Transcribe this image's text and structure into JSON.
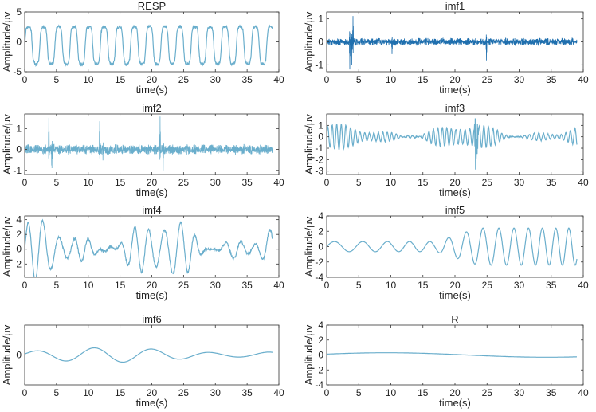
{
  "chart_data": [
    {
      "type": "line",
      "title": "RESP",
      "xlabel": "time(s)",
      "ylabel": "Amplitude/μv",
      "xlim": [
        0,
        40
      ],
      "ylim": [
        -5,
        5
      ],
      "xticks": [
        "0",
        "5",
        "10",
        "15",
        "20",
        "25",
        "30",
        "35",
        "40"
      ],
      "yticks": [
        "-5",
        "0",
        "5"
      ],
      "grid": false,
      "signal": {
        "kind": "resp",
        "amp": 3.2,
        "freq": 0.42,
        "seed": 11
      }
    },
    {
      "type": "line",
      "title": "imf1",
      "xlabel": "time(s)",
      "ylabel": "Amplitude/μv",
      "xlim": [
        0,
        40
      ],
      "ylim": [
        -1.3,
        1.3
      ],
      "xticks": [
        "0",
        "5",
        "10",
        "15",
        "20",
        "25",
        "30",
        "35",
        "40"
      ],
      "yticks": [
        "-1",
        "0",
        "1"
      ],
      "grid": false,
      "signal": {
        "kind": "noise",
        "amp": 0.12,
        "freq": 7,
        "seed": 21,
        "bursts": [
          [
            3.6,
            -1.2
          ],
          [
            4.1,
            1.1
          ],
          [
            3.9,
            -0.9
          ],
          [
            10.2,
            -0.45
          ],
          [
            24.9,
            -0.75
          ]
        ]
      }
    },
    {
      "type": "line",
      "title": "imf2",
      "xlabel": "time(s)",
      "ylabel": "Amplitude/μv",
      "xlim": [
        0,
        40
      ],
      "ylim": [
        -1.2,
        1.7
      ],
      "xticks": [
        "0",
        "5",
        "10",
        "15",
        "20",
        "25",
        "30",
        "35",
        "40"
      ],
      "yticks": [
        "-1",
        "0",
        "1"
      ],
      "grid": false,
      "signal": {
        "kind": "noise",
        "amp": 0.18,
        "freq": 3,
        "seed": 31,
        "bursts": [
          [
            3.8,
            1.6
          ],
          [
            4.3,
            -1.1
          ],
          [
            11.8,
            1.3
          ],
          [
            12.3,
            -0.6
          ],
          [
            21.3,
            1.5
          ],
          [
            21.8,
            -0.9
          ]
        ]
      }
    },
    {
      "type": "line",
      "title": "imf3",
      "xlabel": "time(s)",
      "ylabel": "Amplitude/μv",
      "xlim": [
        0,
        40
      ],
      "ylim": [
        -3.3,
        2
      ],
      "xticks": [
        "0",
        "5",
        "10",
        "15",
        "20",
        "25",
        "30",
        "35",
        "40"
      ],
      "yticks": [
        "-3",
        "-2",
        "-1",
        "0",
        "1"
      ],
      "grid": false,
      "signal": {
        "kind": "osc",
        "amp": 0.8,
        "freq": 1.4,
        "seed": 41,
        "bursts": [
          [
            23.2,
            -3.1
          ],
          [
            23.5,
            1.8
          ]
        ]
      }
    },
    {
      "type": "line",
      "title": "imf4",
      "xlabel": "time(s)",
      "ylabel": "Amplitude/μv",
      "xlim": [
        0,
        40
      ],
      "ylim": [
        -3.8,
        4.5
      ],
      "xticks": [
        "0",
        "5",
        "10",
        "15",
        "20",
        "25",
        "30",
        "35",
        "40"
      ],
      "yticks": [
        "-2",
        "0",
        "2",
        "4"
      ],
      "grid": false,
      "signal": {
        "kind": "osc",
        "amp": 3.0,
        "freq": 0.42,
        "seed": 51
      }
    },
    {
      "type": "line",
      "title": "imf5",
      "xlabel": "time(s)",
      "ylabel": "Amplitude/μv",
      "xlim": [
        0,
        40
      ],
      "ylim": [
        -4,
        4
      ],
      "xticks": [
        "0",
        "5",
        "10",
        "15",
        "20",
        "25",
        "30",
        "35",
        "40"
      ],
      "yticks": [
        "-4",
        "-2",
        "0",
        "2",
        "4"
      ],
      "grid": false,
      "signal": {
        "kind": "grow",
        "amp": 2.2,
        "freq": 0.2,
        "seed": 61
      }
    },
    {
      "type": "line",
      "title": "imf6",
      "xlabel": "time(s)",
      "ylabel": "Amplitude/μv",
      "xlim": [
        0,
        40
      ],
      "ylim": [
        -1.6,
        1.6
      ],
      "xticks": [
        "0",
        "5",
        "10",
        "15",
        "20",
        "25",
        "30",
        "35",
        "40"
      ],
      "yticks": [
        "0"
      ],
      "grid": false,
      "signal": {
        "kind": "slow",
        "amp": 0.28,
        "freq": 0.11,
        "seed": 71
      }
    },
    {
      "type": "line",
      "title": "R",
      "xlabel": "time(s)",
      "ylabel": "Amplitude/μv",
      "xlim": [
        0,
        40
      ],
      "ylim": [
        -4,
        4
      ],
      "xticks": [
        "0",
        "5",
        "10",
        "15",
        "20",
        "25",
        "30",
        "35",
        "40"
      ],
      "yticks": [
        "-4",
        "-2",
        "0",
        "2",
        "4"
      ],
      "grid": false,
      "signal": {
        "kind": "trend",
        "amp": 0.3,
        "freq": 0.02,
        "seed": 81
      }
    }
  ],
  "colors": {
    "line": "#6aaecc",
    "line_dense": "#1f6fae",
    "axis": "#333333",
    "text": "#222222"
  }
}
